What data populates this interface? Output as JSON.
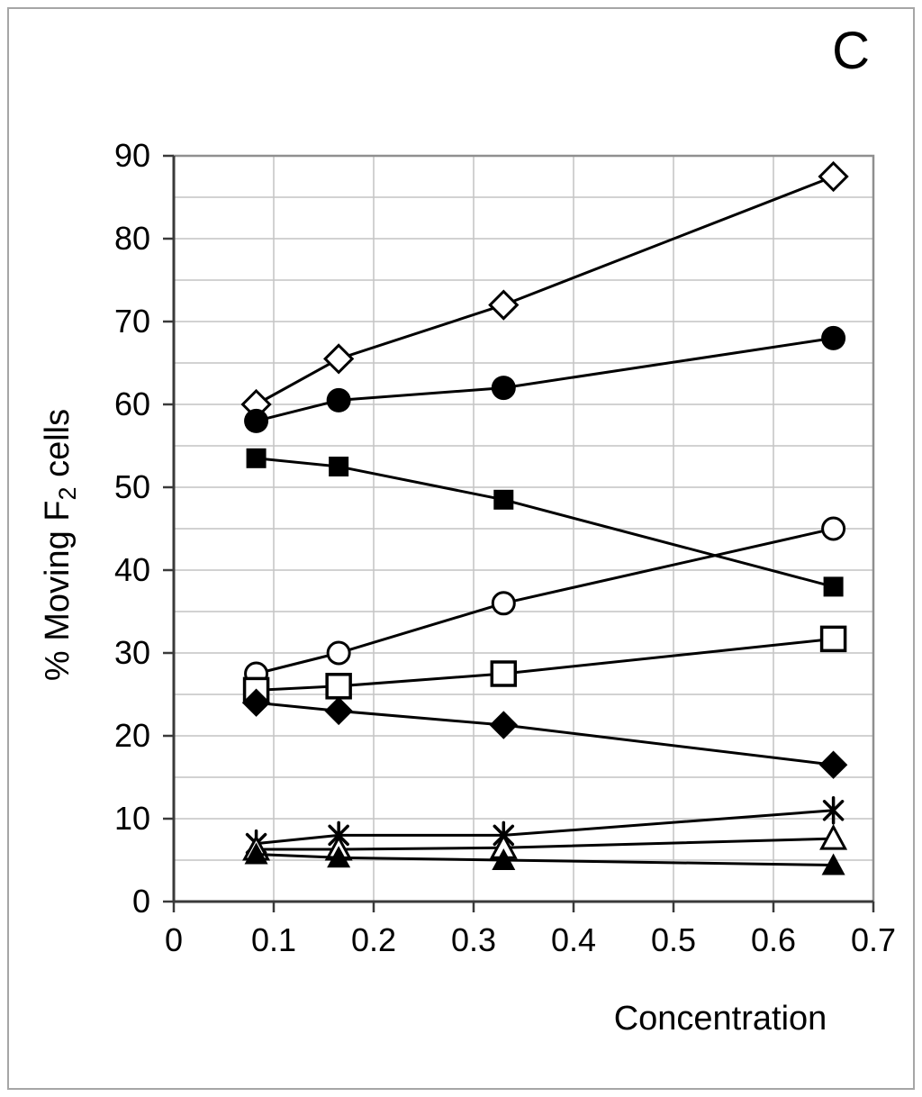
{
  "figure": {
    "panel_label": "C",
    "background_color": "#ffffff",
    "border_color": "#a6a6a6"
  },
  "chart_data": {
    "type": "line",
    "title": "",
    "xlabel": "Concentration",
    "ylabel": "% Moving F2 cells",
    "ylabel_parts": {
      "prefix": "% Moving F",
      "subscript": "2",
      "suffix": " cells"
    },
    "xlim": [
      0,
      0.7
    ],
    "ylim": [
      0,
      90
    ],
    "x_tick_labels": [
      "0",
      "0.1",
      "0.2",
      "0.3",
      "0.4",
      "0.5",
      "0.6",
      "0.7"
    ],
    "x_tick_values": [
      0,
      0.1,
      0.2,
      0.3,
      0.4,
      0.5,
      0.6,
      0.7
    ],
    "y_tick_labels": [
      "0",
      "10",
      "20",
      "30",
      "40",
      "50",
      "60",
      "70",
      "80",
      "90"
    ],
    "y_tick_values": [
      0,
      10,
      20,
      30,
      40,
      50,
      60,
      70,
      80,
      90
    ],
    "grid": {
      "x_interval": 0.1,
      "y_interval": 5,
      "on": true
    },
    "legend": "none",
    "colors": {
      "line": "#000000",
      "marker_fill_open": "#ffffff",
      "marker_fill_solid": "#000000",
      "gridline": "#c4c4c4",
      "frame": "#8f8f8f",
      "axis": "#3a3a3a",
      "text": "#000000"
    },
    "x": [
      0.0825,
      0.165,
      0.33,
      0.66
    ],
    "series": [
      {
        "name": "open-diamond",
        "marker": "diamond-open",
        "values": [
          60,
          65.5,
          72,
          87.5
        ]
      },
      {
        "name": "filled-circle",
        "marker": "circle-filled",
        "values": [
          58,
          60.5,
          62,
          68
        ]
      },
      {
        "name": "filled-square",
        "marker": "square-filled",
        "values": [
          53.5,
          52.5,
          48.5,
          38
        ]
      },
      {
        "name": "open-circle",
        "marker": "circle-open",
        "values": [
          27.5,
          30,
          36,
          45
        ]
      },
      {
        "name": "open-square",
        "marker": "square-open",
        "values": [
          25.5,
          26,
          27.5,
          31.7
        ]
      },
      {
        "name": "filled-diamond",
        "marker": "diamond-filled",
        "values": [
          24,
          23,
          21.3,
          16.5
        ]
      },
      {
        "name": "asterisk",
        "marker": "asterisk",
        "values": [
          7,
          8,
          8,
          11
        ]
      },
      {
        "name": "open-triangle",
        "marker": "triangle-open",
        "values": [
          6.3,
          6.3,
          6.5,
          7.6
        ]
      },
      {
        "name": "filled-triangle",
        "marker": "triangle-filled",
        "values": [
          5.7,
          5.3,
          5.0,
          4.4
        ]
      }
    ]
  }
}
